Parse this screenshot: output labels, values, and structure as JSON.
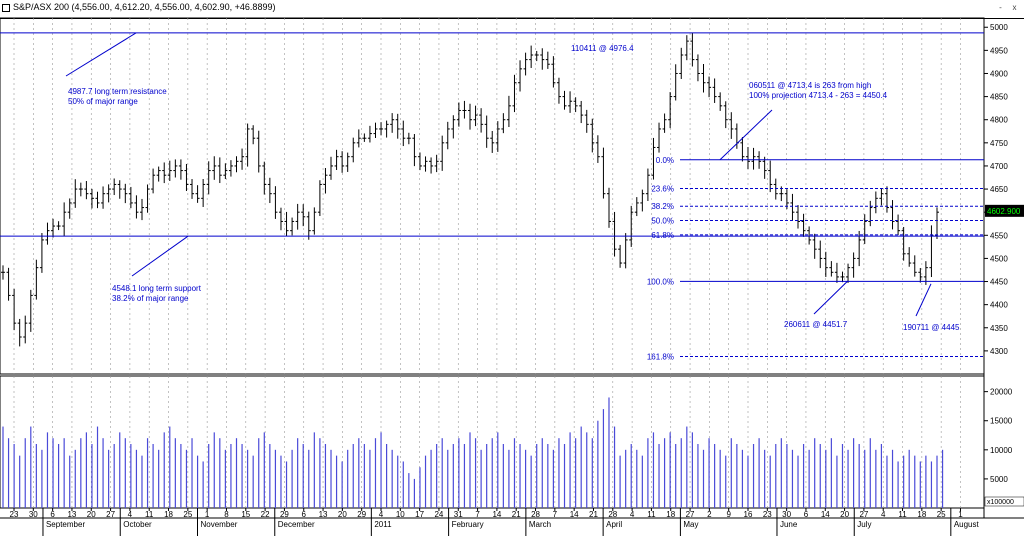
{
  "title": "S&P/ASX 200 (4,556.00, 4,612.20, 4,556.00, 4,602.90, +46.8899)",
  "window_buttons": [
    "-",
    "x"
  ],
  "price_axis": {
    "min": 4250,
    "max": 5020,
    "ticks": [
      5000,
      4950,
      4900,
      4850,
      4800,
      4750,
      4700,
      4650,
      4600,
      4550,
      4500,
      4450,
      4400,
      4350,
      4300
    ]
  },
  "current_price": "4602.900",
  "volume_axis": {
    "min": 0,
    "max": 22000,
    "ticks": [
      20000,
      15000,
      10000,
      5000
    ],
    "multiplier": "x100000"
  },
  "x_axis": {
    "days": [
      "23",
      "30",
      "6",
      "13",
      "20",
      "27",
      "4",
      "11",
      "18",
      "25",
      "1",
      "8",
      "15",
      "22",
      "29",
      "6",
      "13",
      "20",
      "29",
      "4",
      "10",
      "17",
      "24",
      "31",
      "7",
      "14",
      "21",
      "28",
      "7",
      "14",
      "21",
      "28",
      "4",
      "11",
      "18",
      "27",
      "2",
      "9",
      "16",
      "23",
      "30",
      "6",
      "14",
      "20",
      "27",
      "4",
      "11",
      "18",
      "25",
      "1"
    ],
    "months": [
      {
        "label": "September",
        "at": 2
      },
      {
        "label": "October",
        "at": 6
      },
      {
        "label": "November",
        "at": 10
      },
      {
        "label": "December",
        "at": 14
      },
      {
        "label": "2011",
        "at": 19
      },
      {
        "label": "February",
        "at": 23
      },
      {
        "label": "March",
        "at": 27
      },
      {
        "label": "April",
        "at": 31
      },
      {
        "label": "May",
        "at": 35
      },
      {
        "label": "June",
        "at": 40
      },
      {
        "label": "July",
        "at": 44
      },
      {
        "label": "August",
        "at": 49
      }
    ]
  },
  "annotations": {
    "resistance": {
      "line1": "4987.7 long term resistance",
      "line2": "50% of major range",
      "level": 4987.7
    },
    "support": {
      "line1": "4548.1 long term support",
      "line2": "38.2% of major range",
      "level": 4548.1
    },
    "high": {
      "text": "110411 @ 4976.4"
    },
    "projection": {
      "line1": "060511 @ 4713.4 is 263 from high",
      "line2": "100% projection 4713.4 - 263 = 4450.4"
    },
    "low1": {
      "text": "260611 @ 4451.7"
    },
    "low2": {
      "text": "190711 @ 4445"
    }
  },
  "fib_levels": [
    {
      "label": "0.0%",
      "value": 4713.4,
      "style": "solid"
    },
    {
      "label": "23.6%",
      "value": 4651.3,
      "style": "dashed"
    },
    {
      "label": "38.2%",
      "value": 4612.9,
      "style": "dashed"
    },
    {
      "label": "50.0%",
      "value": 4581.9,
      "style": "dashed"
    },
    {
      "label": "61.8%",
      "value": 4550.9,
      "style": "dashed"
    },
    {
      "label": "100.0%",
      "value": 4450.4,
      "style": "solid"
    },
    {
      "label": "161.8%",
      "value": 4287.9,
      "style": "dashed"
    }
  ],
  "colors": {
    "line": "#0000cc",
    "bar": "#000000",
    "volume": "#4a4ad8",
    "text": "#0000cc",
    "grid": "#999999"
  },
  "chart_data": {
    "type": "bar",
    "title": "S&P/ASX 200 (4,556.00, 4,612.20, 4,556.00, 4,602.90, +46.8899)",
    "series": [
      {
        "values": [
          4470,
          4420,
          4360,
          4330,
          4360,
          4420,
          4480,
          4540,
          4560,
          4570,
          4570,
          4600,
          4620,
          4650,
          4650,
          4640,
          4630,
          4620,
          4640,
          4650,
          4660,
          4650,
          4640,
          4620,
          4600,
          4610,
          4650,
          4680,
          4690,
          4680,
          4690,
          4700,
          4690,
          4660,
          4640,
          4630,
          4660,
          4690,
          4700,
          4680,
          4690,
          4700,
          4710,
          4720,
          4780,
          4760,
          4700,
          4660,
          4640,
          4600,
          4580,
          4560,
          4580,
          4600,
          4590,
          4560,
          4600,
          4660,
          4680,
          4700,
          4720,
          4700,
          4720,
          4750,
          4760,
          4760,
          4770,
          4780,
          4780,
          4790,
          4800,
          4780,
          4760,
          4760,
          4720,
          4700,
          4710,
          4700,
          4710,
          4750,
          4780,
          4800,
          4820,
          4820,
          4800,
          4810,
          4790,
          4760,
          4750,
          4780,
          4800,
          4830,
          4880,
          4910,
          4930,
          4940,
          4940,
          4930,
          4920,
          4880,
          4850,
          4830,
          4840,
          4830,
          4810,
          4790,
          4750,
          4720,
          4640,
          4580,
          4520,
          4490,
          4540,
          4600,
          4620,
          4640,
          4680,
          4740,
          4780,
          4800,
          4850,
          4900,
          4940,
          4970,
          4930,
          4900,
          4880,
          4870,
          4850,
          4830,
          4800,
          4780,
          4750,
          4720,
          4710,
          4720,
          4710,
          4690,
          4660,
          4640,
          4640,
          4620,
          4600,
          4580,
          4560,
          4540,
          4520,
          4500,
          4480,
          4470,
          4460,
          4460,
          4480,
          4500,
          4540,
          4580,
          4610,
          4630,
          4640,
          4610,
          4580,
          4560,
          4510,
          4490,
          4470,
          4460,
          4480,
          4550,
          4600
        ],
        "name": ""
      },
      {
        "values": [
          14000,
          12000,
          11000,
          9000,
          12000,
          14000,
          11000,
          10000,
          13000,
          12000,
          11000,
          12000,
          9000,
          10000,
          12000,
          13000,
          11000,
          14000,
          12000,
          10000,
          11000,
          13000,
          12000,
          11000,
          10000,
          9000,
          12000,
          11000,
          10000,
          13000,
          14000,
          12000,
          11000,
          10000,
          12000,
          9000,
          8000,
          11000,
          13000,
          12000,
          10000,
          11000,
          12000,
          11000,
          10000,
          9000,
          12000,
          13000,
          11000,
          10000,
          9000,
          8000,
          10000,
          12000,
          11000,
          10000,
          13000,
          12000,
          11000,
          10000,
          9000,
          8000,
          10000,
          11000,
          12000,
          11000,
          10000,
          12000,
          13000,
          11000,
          10000,
          9000,
          8000,
          6000,
          5000,
          7000,
          9000,
          10000,
          11000,
          12000,
          10000,
          11000,
          12000,
          11000,
          13000,
          12000,
          10000,
          11000,
          12000,
          13000,
          11000,
          10000,
          12000,
          11000,
          10000,
          9000,
          11000,
          12000,
          11000,
          10000,
          12000,
          11000,
          13000,
          12000,
          14000,
          13000,
          12000,
          15000,
          17000,
          19000,
          14000,
          9000,
          10000,
          11000,
          10000,
          9000,
          12000,
          13000,
          11000,
          12000,
          13000,
          11000,
          12000,
          14000,
          13000,
          11000,
          10000,
          12000,
          11000,
          10000,
          9000,
          12000,
          11000,
          10000,
          9000,
          11000,
          12000,
          10000,
          9000,
          11000,
          12000,
          11000,
          10000,
          9000,
          11000,
          10000,
          12000,
          11000,
          10000,
          12000,
          9000,
          11000,
          10000,
          12000,
          11000,
          10000,
          12000,
          10000,
          11000,
          9000,
          10000,
          8000,
          9000,
          10000,
          9000,
          8000,
          9000,
          8000,
          9000,
          10000
        ],
        "name": ""
      }
    ],
    "ylim": [
      4250,
      5020
    ]
  }
}
